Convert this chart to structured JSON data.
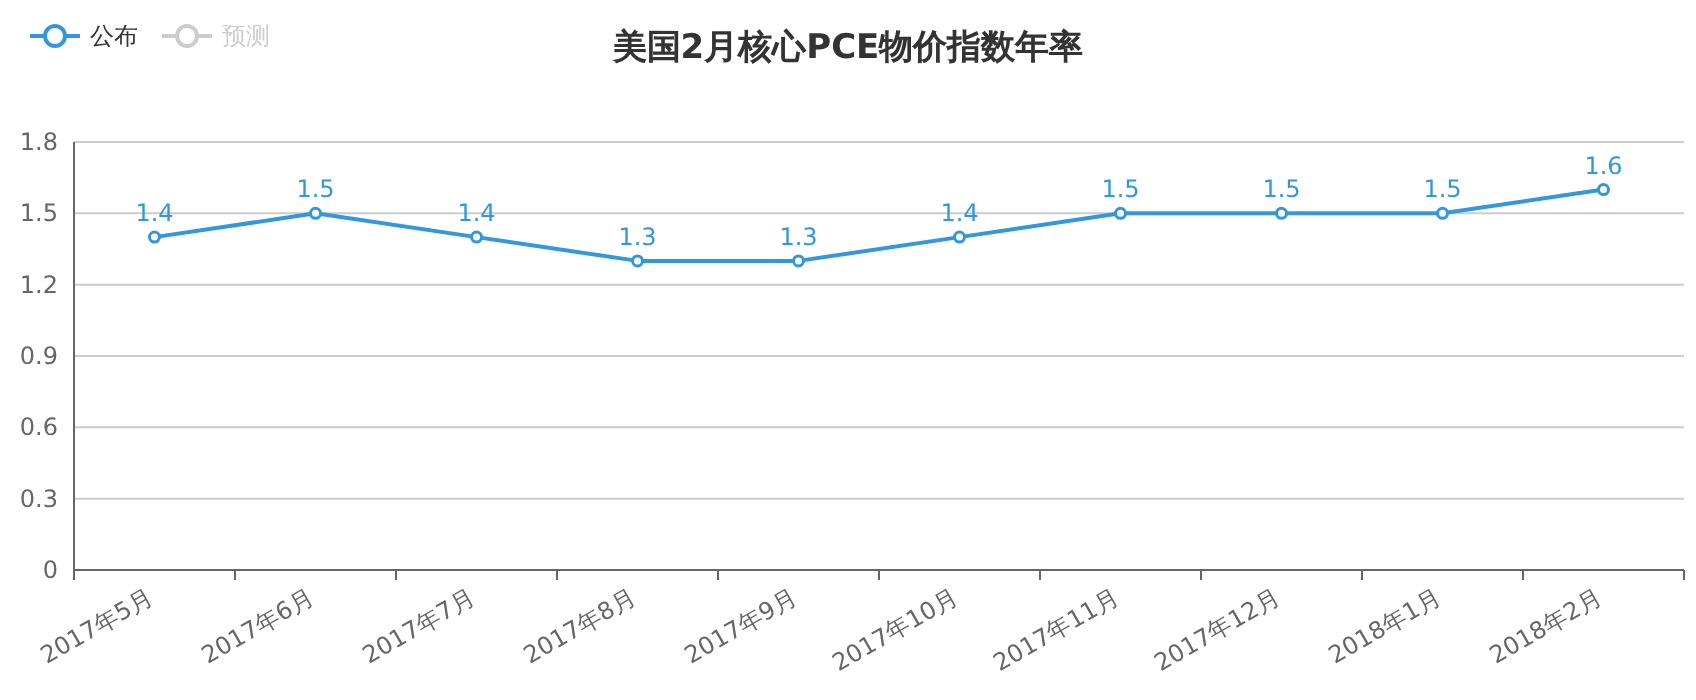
{
  "chart_data": {
    "type": "line",
    "title": "美国2月核心PCE物价指数年率",
    "categories": [
      "2017年5月",
      "2017年6月",
      "2017年7月",
      "2017年8月",
      "2017年9月",
      "2017年10月",
      "2017年11月",
      "2017年12月",
      "2018年1月",
      "2018年2月"
    ],
    "series": [
      {
        "name": "公布",
        "color": "#3398db",
        "values": [
          1.4,
          1.5,
          1.4,
          1.3,
          1.3,
          1.4,
          1.5,
          1.5,
          1.5,
          1.6
        ]
      },
      {
        "name": "预测",
        "color": "#cccccc",
        "values": [
          null,
          null,
          null,
          null,
          null,
          null,
          null,
          null,
          null,
          null
        ]
      }
    ],
    "ylim": [
      0,
      1.8
    ],
    "yticks": [
      0,
      0.3,
      0.6,
      0.9,
      1.2,
      1.5,
      1.8
    ],
    "grid": "y",
    "legend": "top left",
    "marker": "circle",
    "line_style": "solid",
    "data_labels": true
  }
}
